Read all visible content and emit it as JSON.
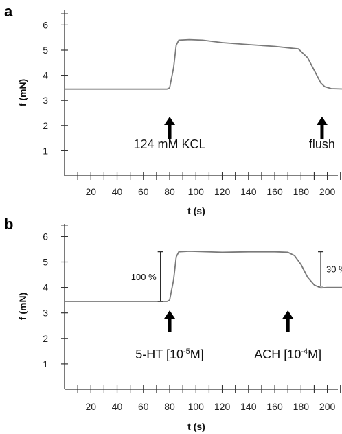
{
  "chart_data": [
    {
      "type": "line",
      "panel": "a",
      "xlabel": "t (s)",
      "ylabel": "f (mN)",
      "xlim": [
        0,
        215
      ],
      "ylim": [
        0,
        6.5
      ],
      "xticks": [
        20,
        40,
        60,
        80,
        100,
        120,
        140,
        160,
        180,
        200
      ],
      "yticks": [
        1,
        2,
        3,
        4,
        5,
        6
      ],
      "series": [
        {
          "x": [
            0,
            20,
            40,
            60,
            78,
            80,
            83,
            85,
            87,
            95,
            105,
            120,
            140,
            160,
            178,
            185,
            190,
            195,
            198,
            203,
            215
          ],
          "y": [
            3.45,
            3.45,
            3.45,
            3.45,
            3.45,
            3.5,
            4.3,
            5.2,
            5.4,
            5.42,
            5.4,
            5.3,
            5.22,
            5.15,
            5.05,
            4.7,
            4.2,
            3.7,
            3.55,
            3.47,
            3.45
          ]
        }
      ],
      "annotations": [
        {
          "text": "124 mM KCL",
          "x": 80
        },
        {
          "text": "flush",
          "x": 196
        }
      ],
      "grid": false
    },
    {
      "type": "line",
      "panel": "b",
      "xlabel": "t (s)",
      "ylabel": "f (mN)",
      "xlim": [
        0,
        215
      ],
      "ylim": [
        0,
        6.5
      ],
      "xticks": [
        20,
        40,
        60,
        80,
        100,
        120,
        140,
        160,
        180,
        200
      ],
      "yticks": [
        1,
        2,
        3,
        4,
        5,
        6
      ],
      "series": [
        {
          "x": [
            0,
            20,
            40,
            60,
            78,
            80,
            83,
            85,
            87,
            95,
            120,
            140,
            160,
            170,
            175,
            180,
            185,
            190,
            195,
            200,
            215
          ],
          "y": [
            3.45,
            3.45,
            3.45,
            3.45,
            3.45,
            3.5,
            4.3,
            5.2,
            5.4,
            5.42,
            5.38,
            5.4,
            5.4,
            5.38,
            5.25,
            4.9,
            4.4,
            4.1,
            3.98,
            4.0,
            4.0
          ]
        }
      ],
      "annotations": [
        {
          "text": "5-HT [10",
          "sup": "-5",
          "tail": "M]",
          "x": 80
        },
        {
          "text": "ACH [10",
          "sup": "-4",
          "tail": "M]",
          "x": 170
        }
      ],
      "brackets": [
        {
          "label": "100 %",
          "x": 73,
          "y_from": 3.45,
          "y_to": 5.4
        },
        {
          "label": "30 %",
          "x": 195,
          "y_from": 4.05,
          "y_to": 5.4
        }
      ],
      "grid": false
    }
  ]
}
